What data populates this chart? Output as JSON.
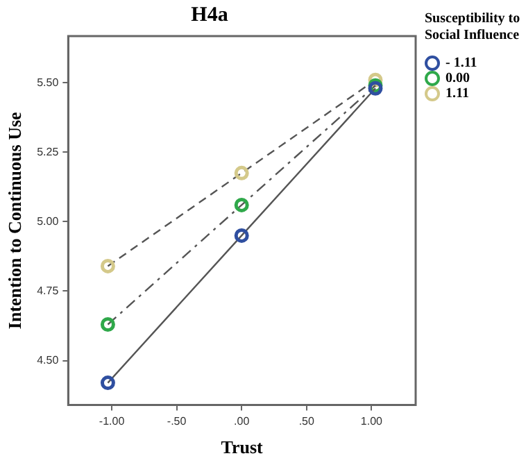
{
  "chart_data": {
    "type": "line",
    "title": "H4a",
    "xlabel": "Trust",
    "ylabel": "Intention to Continuous Use",
    "legend_title": "Susceptibility to Social Influence",
    "x": [
      -1.03,
      0,
      1.03
    ],
    "series": [
      {
        "name": "- 1.11",
        "color": "#2f4fa0",
        "values": [
          4.42,
          4.95,
          5.48
        ],
        "line_style": "solid"
      },
      {
        "name": "0.00",
        "color": "#2fa84a",
        "values": [
          4.63,
          5.06,
          5.49
        ],
        "line_style": "dashdot"
      },
      {
        "name": "1.11",
        "color": "#d4c98a",
        "values": [
          4.84,
          5.175,
          5.51
        ],
        "line_style": "dashed"
      }
    ],
    "xlim": [
      -1.335,
      1.34
    ],
    "xticks": [
      {
        "value": -1,
        "label": "-1.00"
      },
      {
        "value": -0.5,
        "label": "-.50"
      },
      {
        "value": 0,
        "label": ".00"
      },
      {
        "value": 0.5,
        "label": ".50"
      },
      {
        "value": 1,
        "label": "1.00"
      }
    ],
    "ylim": [
      4.34,
      5.668
    ],
    "yticks": [
      {
        "value": 4.5,
        "label": "4.50"
      },
      {
        "value": 4.75,
        "label": "4.75"
      },
      {
        "value": 5,
        "label": "5.00"
      },
      {
        "value": 5.25,
        "label": "5.25"
      },
      {
        "value": 5.5,
        "label": "5.50"
      }
    ],
    "grid": false,
    "legend": "top right",
    "marker": "circle"
  }
}
